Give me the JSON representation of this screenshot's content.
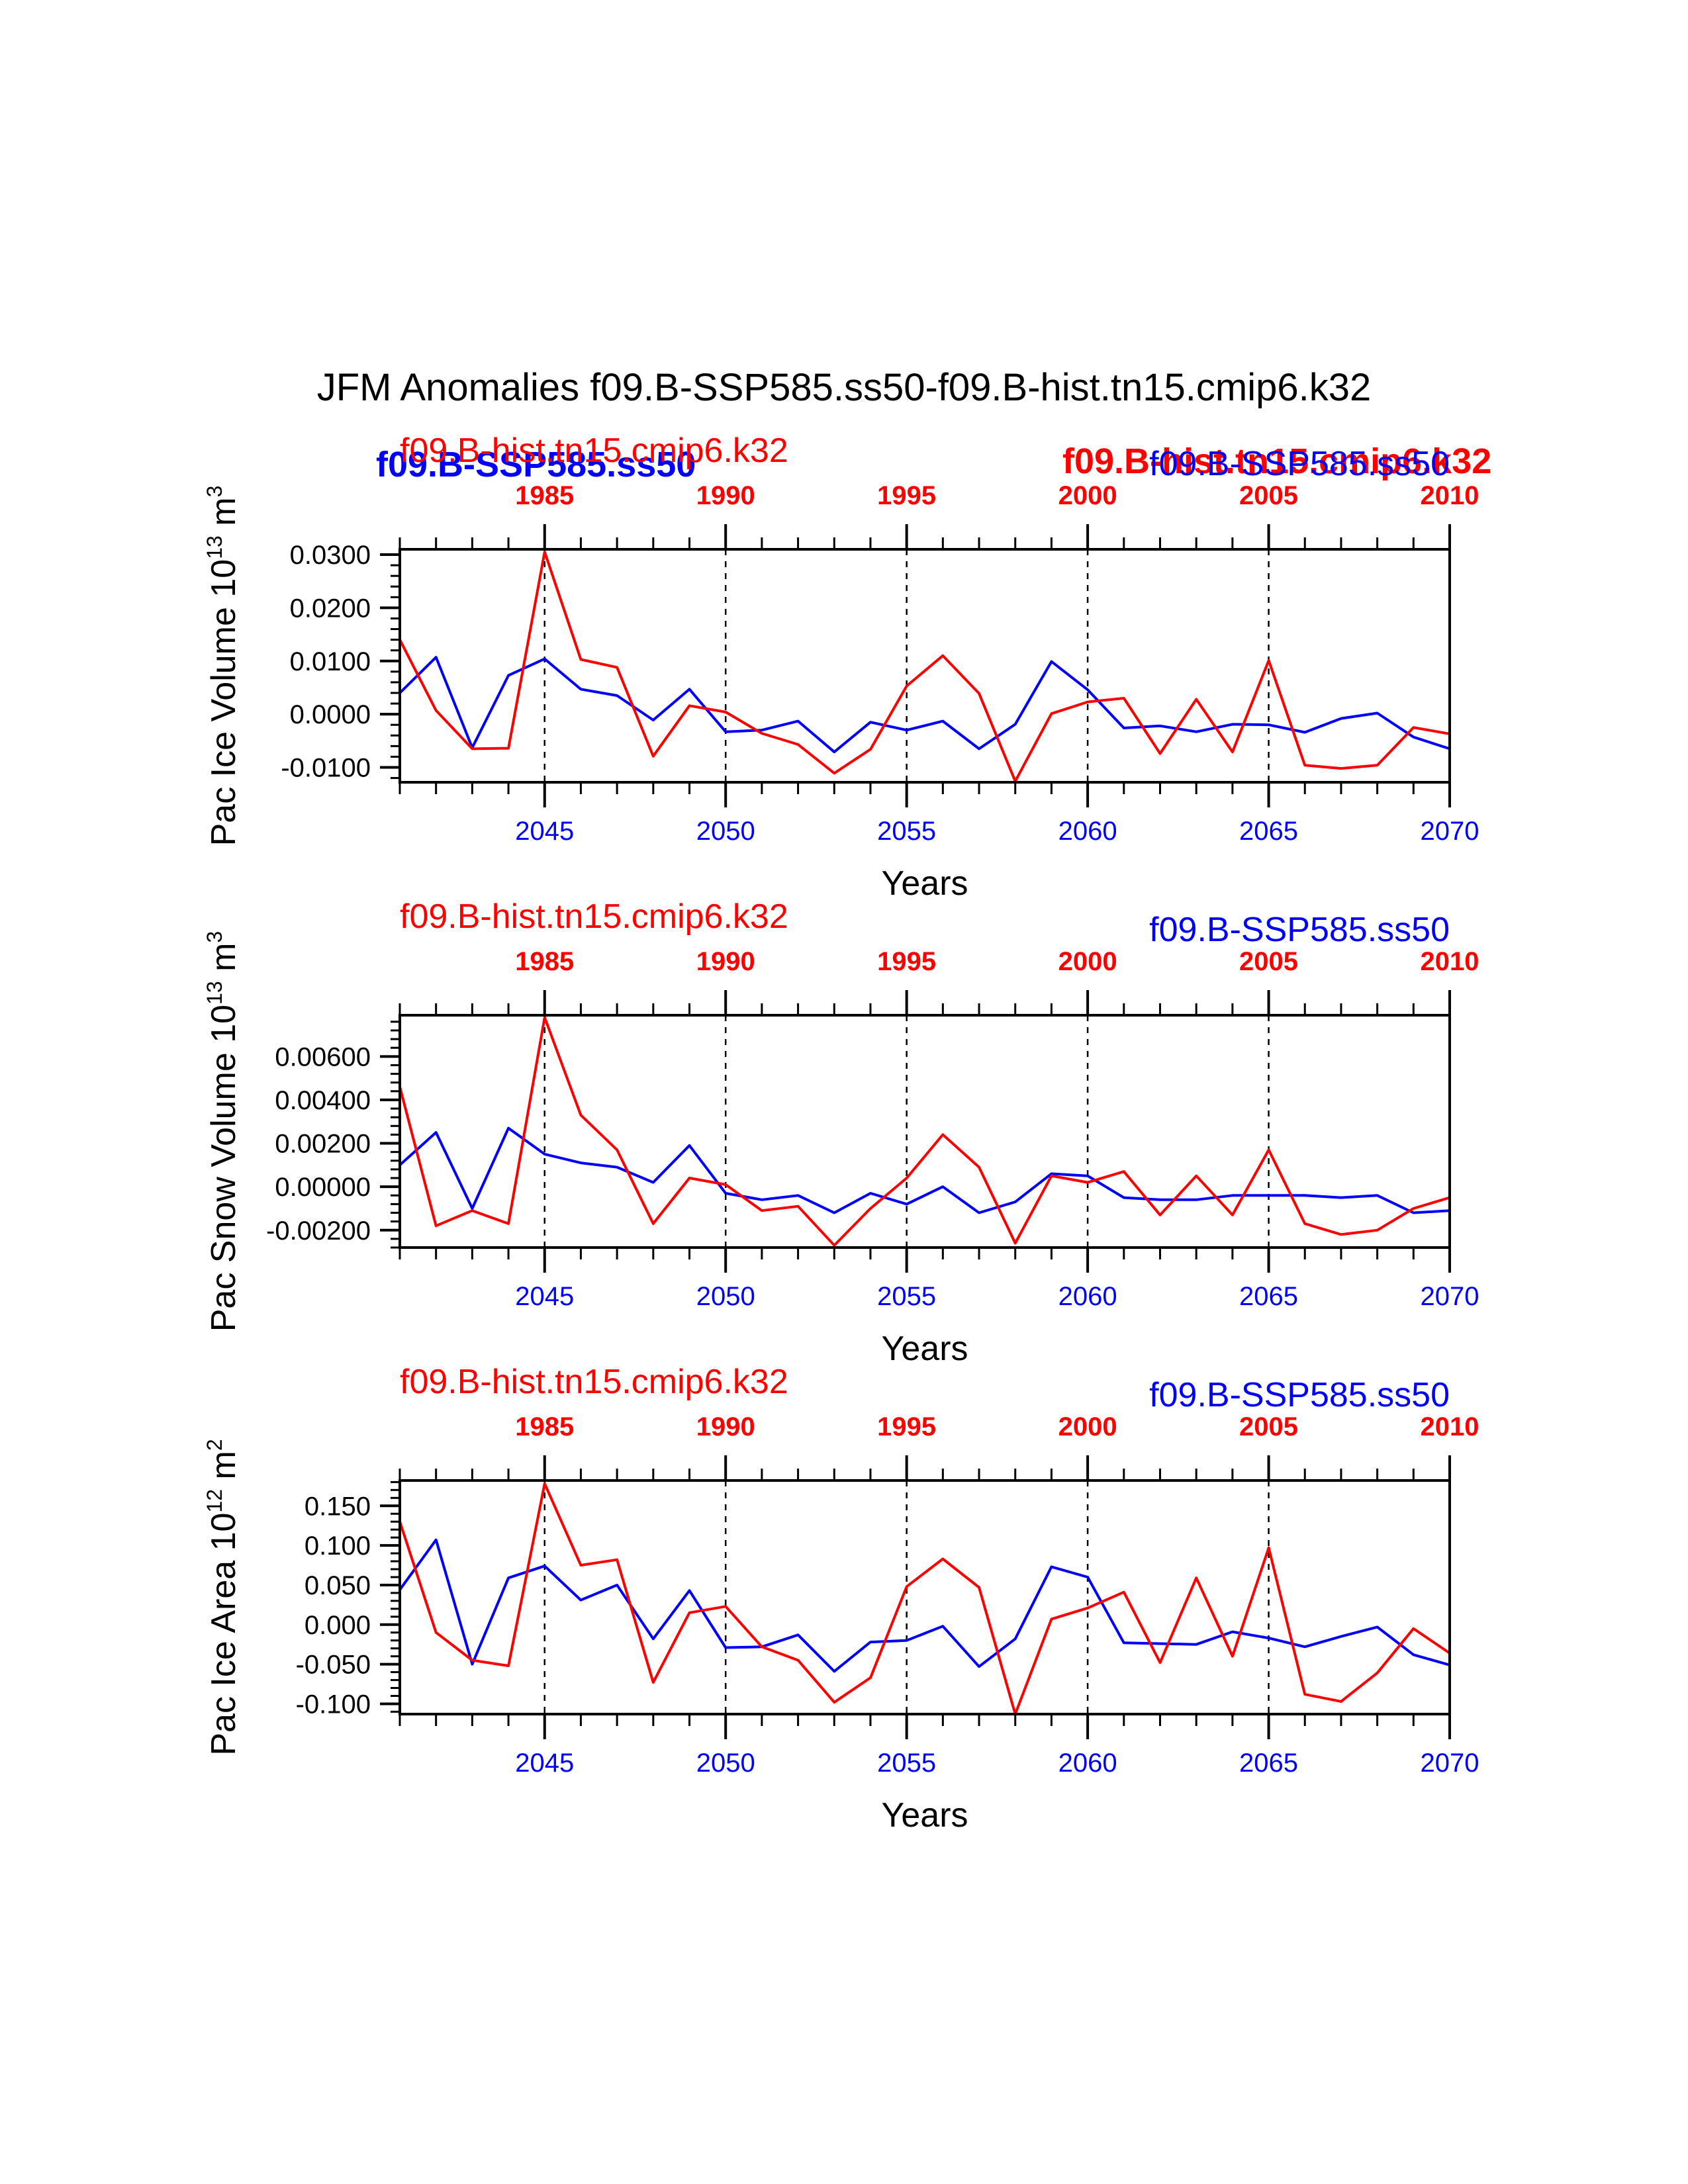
{
  "figure": {
    "title": "JFM Anomalies f09.B-SSP585.ss50-f09.B-hist.tn15.cmip6.k32",
    "colors": {
      "ssp": "#0000ff",
      "hist": "#ff0000",
      "axis": "#000000"
    },
    "overlay_labels": {
      "ssp_bold": "f09.B-SSP585.ss50",
      "hist_bold": "f09.B-hist.tn15.cmip6.k32"
    }
  },
  "chart_data": [
    {
      "type": "line",
      "ylabel_main": "Pac Ice Volume 10",
      "ylabel_exp": "13",
      "ylabel_unit": "m",
      "ylabel_unit_exp": "3",
      "xlabel": "Years",
      "label_hist": "f09.B-hist.tn15.cmip6.k32",
      "label_ssp": "f09.B-SSP585.ss50",
      "ylim": [
        -0.0128,
        0.031
      ],
      "yticks": [
        -0.01,
        0.0,
        0.01,
        0.02,
        0.03
      ],
      "ytick_labels": [
        "-0.0100",
        "0.0000",
        "0.0100",
        "0.0200",
        "0.0300"
      ],
      "xlim_bottom": [
        2041,
        2070
      ],
      "xlim_top": [
        1981,
        2010
      ],
      "bottom_ticks": [
        2045,
        2050,
        2055,
        2060,
        2065,
        2070
      ],
      "top_ticks": [
        1985,
        1990,
        1995,
        2000,
        2005,
        2010
      ],
      "vlines": [
        2045,
        2050,
        2055,
        2060,
        2065
      ],
      "series": [
        {
          "name": "f09.B-SSP585.ss50",
          "color": "#0000ff",
          "x": [
            2041,
            2042,
            2043,
            2044,
            2045,
            2046,
            2047,
            2048,
            2049,
            2050,
            2051,
            2052,
            2053,
            2054,
            2055,
            2056,
            2057,
            2058,
            2059,
            2060,
            2061,
            2062,
            2063,
            2064,
            2065,
            2066,
            2067,
            2068,
            2069,
            2070
          ],
          "values": [
            0.004,
            0.0107,
            -0.0063,
            0.0073,
            0.0104,
            0.0047,
            0.0035,
            -0.0011,
            0.0047,
            -0.0033,
            -0.003,
            -0.0013,
            -0.0071,
            -0.0015,
            -0.003,
            -0.0013,
            -0.0065,
            -0.0019,
            0.0099,
            0.0046,
            -0.0026,
            -0.0022,
            -0.0033,
            -0.0019,
            -0.002,
            -0.0034,
            -0.0008,
            0.0002,
            -0.0043,
            -0.0065
          ]
        },
        {
          "name": "f09.B-hist.tn15.cmip6.k32",
          "color": "#ff0000",
          "x": [
            2041,
            2042,
            2043,
            2044,
            2045,
            2046,
            2047,
            2048,
            2049,
            2050,
            2051,
            2052,
            2053,
            2054,
            2055,
            2056,
            2057,
            2058,
            2059,
            2060,
            2061,
            2062,
            2063,
            2064,
            2065,
            2066,
            2067,
            2068,
            2069,
            2070
          ],
          "values": [
            0.014,
            0.0007,
            -0.0065,
            -0.0064,
            0.0305,
            0.0103,
            0.0088,
            -0.0079,
            0.0016,
            0.0004,
            -0.0036,
            -0.0057,
            -0.0111,
            -0.0066,
            0.0053,
            0.011,
            0.0039,
            -0.0126,
            0.0001,
            0.0023,
            0.003,
            -0.0074,
            0.0028,
            -0.0071,
            0.0101,
            -0.0096,
            -0.0102,
            -0.0096,
            -0.0025,
            -0.0037
          ]
        }
      ]
    },
    {
      "type": "line",
      "ylabel_main": "Pac Snow Volume 10",
      "ylabel_exp": "13",
      "ylabel_unit": "m",
      "ylabel_unit_exp": "3",
      "xlabel": "Years",
      "label_hist": "f09.B-hist.tn15.cmip6.k32",
      "label_ssp": "f09.B-SSP585.ss50",
      "ylim": [
        -0.0028,
        0.0079
      ],
      "yticks": [
        -0.002,
        0.0,
        0.002,
        0.004,
        0.006
      ],
      "ytick_labels": [
        "-0.00200",
        "0.00000",
        "0.00200",
        "0.00400",
        "0.00600"
      ],
      "xlim_bottom": [
        2041,
        2070
      ],
      "xlim_top": [
        1981,
        2010
      ],
      "bottom_ticks": [
        2045,
        2050,
        2055,
        2060,
        2065,
        2070
      ],
      "top_ticks": [
        1985,
        1990,
        1995,
        2000,
        2005,
        2010
      ],
      "vlines": [
        2045,
        2050,
        2055,
        2060,
        2065
      ],
      "series": [
        {
          "name": "f09.B-SSP585.ss50",
          "color": "#0000ff",
          "x": [
            2041,
            2042,
            2043,
            2044,
            2045,
            2046,
            2047,
            2048,
            2049,
            2050,
            2051,
            2052,
            2053,
            2054,
            2055,
            2056,
            2057,
            2058,
            2059,
            2060,
            2061,
            2062,
            2063,
            2064,
            2065,
            2066,
            2067,
            2068,
            2069,
            2070
          ],
          "values": [
            0.001,
            0.0025,
            -0.001,
            0.0027,
            0.0015,
            0.0011,
            0.0009,
            0.0002,
            0.0019,
            -0.0003,
            -0.0006,
            -0.0004,
            -0.0012,
            -0.0003,
            -0.0008,
            0.0,
            -0.0012,
            -0.0007,
            0.0006,
            0.0005,
            -0.0005,
            -0.0006,
            -0.0006,
            -0.0004,
            -0.0004,
            -0.0004,
            -0.0005,
            -0.0004,
            -0.0012,
            -0.0011
          ]
        },
        {
          "name": "f09.B-hist.tn15.cmip6.k32",
          "color": "#ff0000",
          "x": [
            2041,
            2042,
            2043,
            2044,
            2045,
            2046,
            2047,
            2048,
            2049,
            2050,
            2051,
            2052,
            2053,
            2054,
            2055,
            2056,
            2057,
            2058,
            2059,
            2060,
            2061,
            2062,
            2063,
            2064,
            2065,
            2066,
            2067,
            2068,
            2069,
            2070
          ],
          "values": [
            0.0046,
            -0.0018,
            -0.0011,
            -0.0017,
            0.0078,
            0.0033,
            0.0017,
            -0.0017,
            0.0004,
            0.0001,
            -0.0011,
            -0.0009,
            -0.0027,
            -0.001,
            0.0004,
            0.0024,
            0.0009,
            -0.0026,
            0.0005,
            0.0002,
            0.0007,
            -0.0013,
            0.0005,
            -0.0013,
            0.0017,
            -0.0017,
            -0.0022,
            -0.002,
            -0.001,
            -0.0005
          ]
        }
      ]
    },
    {
      "type": "line",
      "ylabel_main": "Pac Ice Area 10",
      "ylabel_exp": "12",
      "ylabel_unit": "m",
      "ylabel_unit_exp": "2",
      "xlabel": "Years",
      "label_hist": "f09.B-hist.tn15.cmip6.k32",
      "label_ssp": "f09.B-SSP585.ss50",
      "ylim": [
        -0.113,
        0.182
      ],
      "yticks": [
        -0.1,
        -0.05,
        0.0,
        0.05,
        0.1,
        0.15
      ],
      "ytick_labels": [
        "-0.100",
        "-0.050",
        "0.000",
        "0.050",
        "0.100",
        "0.150"
      ],
      "xlim_bottom": [
        2041,
        2070
      ],
      "xlim_top": [
        1981,
        2010
      ],
      "bottom_ticks": [
        2045,
        2050,
        2055,
        2060,
        2065,
        2070
      ],
      "top_ticks": [
        1985,
        1990,
        1995,
        2000,
        2005,
        2010
      ],
      "vlines": [
        2045,
        2050,
        2055,
        2060,
        2065
      ],
      "series": [
        {
          "name": "f09.B-SSP585.ss50",
          "color": "#0000ff",
          "x": [
            2041,
            2042,
            2043,
            2044,
            2045,
            2046,
            2047,
            2048,
            2049,
            2050,
            2051,
            2052,
            2053,
            2054,
            2055,
            2056,
            2057,
            2058,
            2059,
            2060,
            2061,
            2062,
            2063,
            2064,
            2065,
            2066,
            2067,
            2068,
            2069,
            2070
          ],
          "values": [
            0.044,
            0.107,
            -0.05,
            0.059,
            0.074,
            0.031,
            0.05,
            -0.018,
            0.043,
            -0.029,
            -0.028,
            -0.013,
            -0.059,
            -0.022,
            -0.02,
            -0.002,
            -0.053,
            -0.018,
            0.073,
            0.06,
            -0.023,
            -0.024,
            -0.025,
            -0.009,
            -0.017,
            -0.028,
            -0.015,
            -0.003,
            -0.038,
            -0.051
          ]
        },
        {
          "name": "f09.B-hist.tn15.cmip6.k32",
          "color": "#ff0000",
          "x": [
            2041,
            2042,
            2043,
            2044,
            2045,
            2046,
            2047,
            2048,
            2049,
            2050,
            2051,
            2052,
            2053,
            2054,
            2055,
            2056,
            2057,
            2058,
            2059,
            2060,
            2061,
            2062,
            2063,
            2064,
            2065,
            2066,
            2067,
            2068,
            2069,
            2070
          ],
          "values": [
            0.13,
            -0.01,
            -0.045,
            -0.052,
            0.178,
            0.075,
            0.082,
            -0.073,
            0.015,
            0.023,
            -0.028,
            -0.045,
            -0.098,
            -0.067,
            0.048,
            0.083,
            0.047,
            -0.113,
            0.007,
            0.021,
            0.041,
            -0.048,
            0.059,
            -0.04,
            0.097,
            -0.088,
            -0.097,
            -0.061,
            -0.005,
            -0.036
          ]
        }
      ]
    }
  ]
}
